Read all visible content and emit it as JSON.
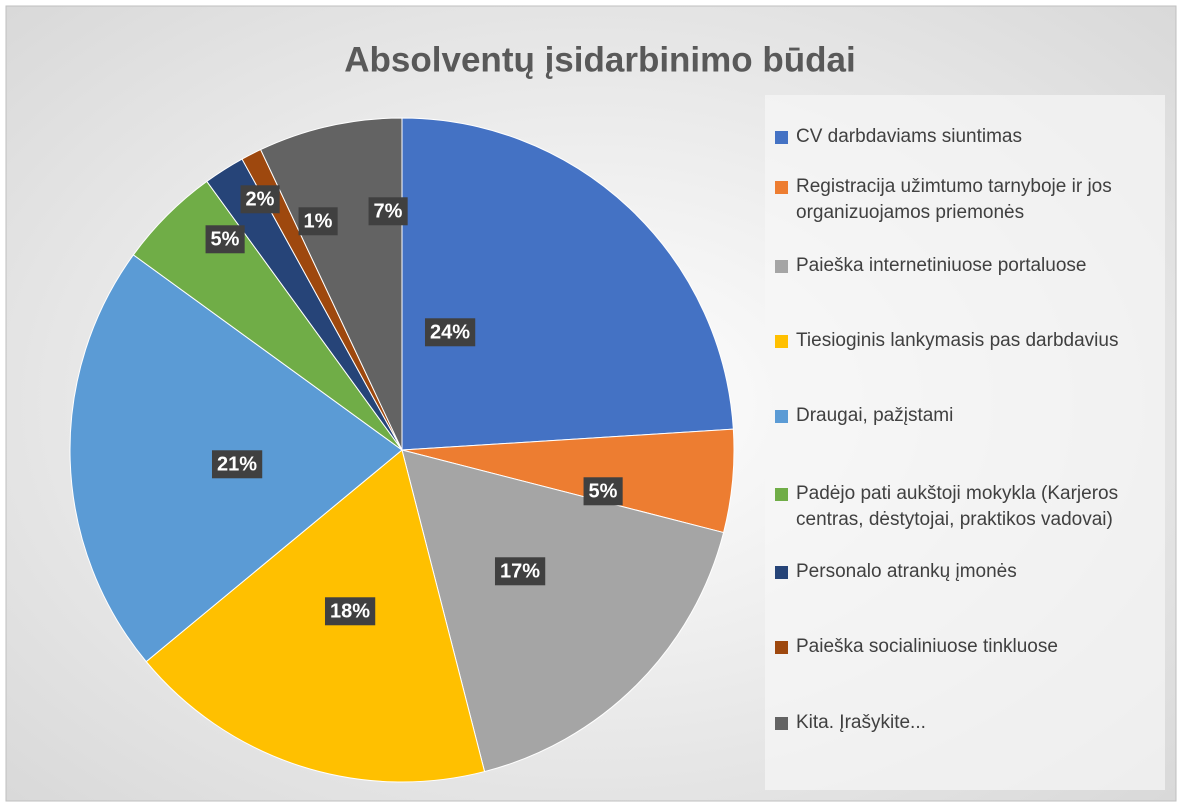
{
  "chart_data": {
    "type": "pie",
    "title": "Absolventų įsidarbinimo būdai",
    "categories": [
      "CV darbdaviams siuntimas",
      "Registracija užimtumo tarnyboje ir jos organizuojamos priemonės",
      "Paieška internetiniuose portaluose",
      "Tiesioginis lankymasis pas darbdavius",
      "Draugai, pažįstami",
      "Padėjo pati aukštoji mokykla (Karjeros centras, dėstytojai, praktikos vadovai)",
      "Personalo atrankų įmonės",
      "Paieška socialiniuose tinkluose",
      "Kita. Įrašykite..."
    ],
    "values": [
      24,
      5,
      17,
      18,
      21,
      5,
      2,
      1,
      7
    ],
    "value_labels": [
      "24%",
      "5%",
      "17%",
      "18%",
      "21%",
      "5%",
      "2%",
      "1%",
      "7%"
    ],
    "colors": [
      "#4472c4",
      "#ed7d31",
      "#a5a5a5",
      "#ffc000",
      "#5b9bd5",
      "#70ad47",
      "#264478",
      "#9e480e",
      "#636363"
    ],
    "legend": "right"
  }
}
